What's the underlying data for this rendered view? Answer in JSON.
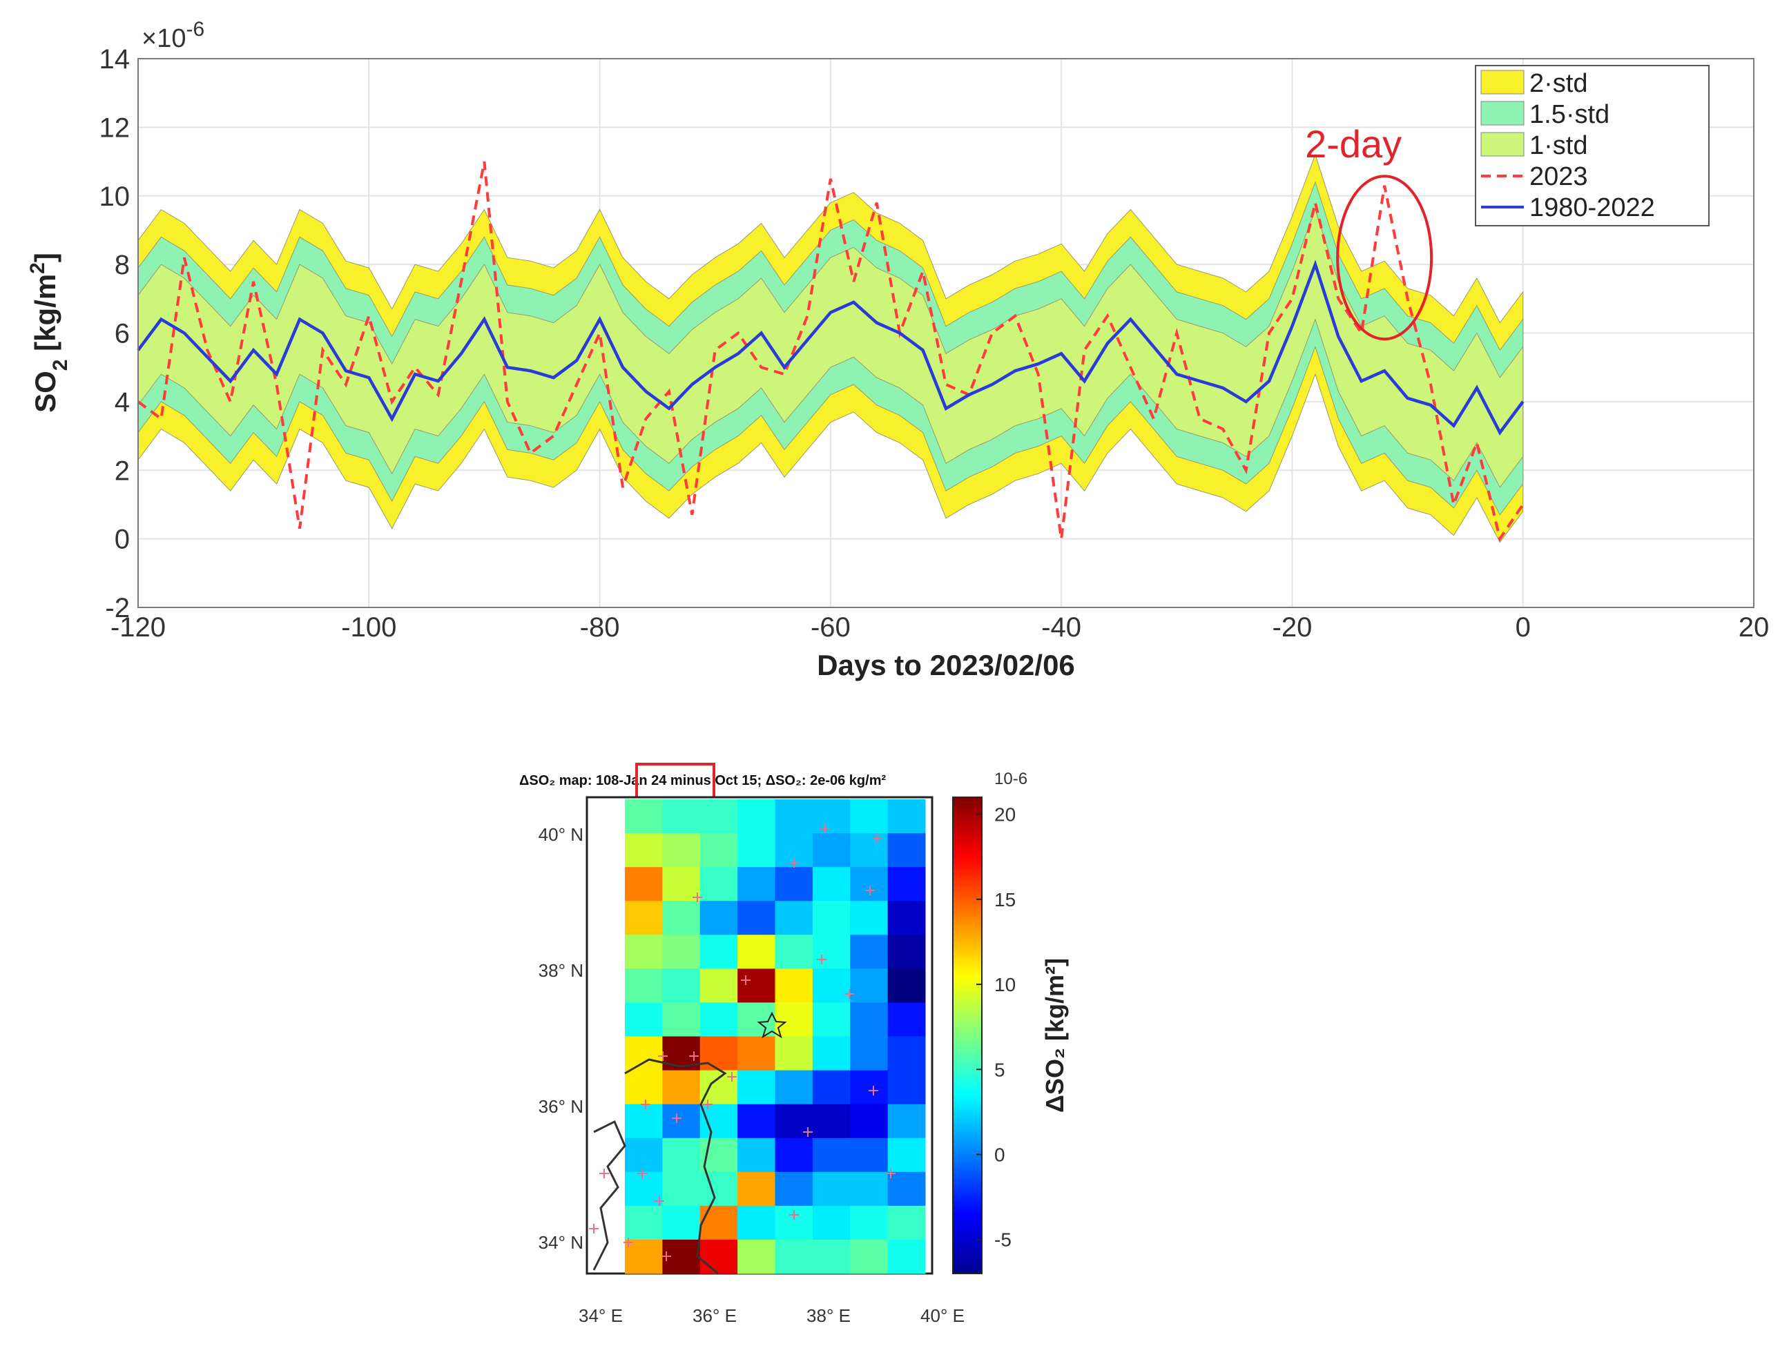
{
  "chart_data": [
    {
      "type": "area",
      "title": "",
      "xlabel": "Days to 2023/02/06",
      "ylabel": "SO",
      "ylabel_sub": "2",
      "ylabel_unit": " [kg/m",
      "ylabel_sup": "2",
      "ylabel_close": "]",
      "exponent_prefix": "×10",
      "exponent_power": "-6",
      "xlim": [
        -120,
        20
      ],
      "ylim": [
        -2,
        14
      ],
      "x_ticks": [
        -120,
        -100,
        -80,
        -60,
        -40,
        -20,
        0,
        20
      ],
      "y_ticks": [
        -2,
        0,
        2,
        4,
        6,
        8,
        10,
        12,
        14
      ],
      "grid": true,
      "legend_position": "top-right",
      "legend": [
        {
          "label": "2·std",
          "kind": "patch",
          "color": "#f7f02a"
        },
        {
          "label": "1.5·std",
          "kind": "patch",
          "color": "#8ef2b2"
        },
        {
          "label": "1·std",
          "kind": "patch",
          "color": "#cdf57a"
        },
        {
          "label": "2023",
          "kind": "dash",
          "color": "#ff3b3b"
        },
        {
          "label": "1980-2022",
          "kind": "line",
          "color": "#2a3bd8"
        }
      ],
      "annotation": {
        "label": "2-day",
        "color": "#e0242c",
        "center_day": -12,
        "center_value": 8.2
      },
      "x": [
        -120,
        -118,
        -116,
        -114,
        -112,
        -110,
        -108,
        -106,
        -104,
        -102,
        -100,
        -98,
        -96,
        -94,
        -92,
        -90,
        -88,
        -86,
        -84,
        -82,
        -80,
        -78,
        -76,
        -74,
        -72,
        -70,
        -68,
        -66,
        -64,
        -62,
        -60,
        -58,
        -56,
        -54,
        -52,
        -50,
        -48,
        -46,
        -44,
        -42,
        -40,
        -38,
        -36,
        -34,
        -32,
        -30,
        -28,
        -26,
        -24,
        -22,
        -20,
        -18,
        -16,
        -14,
        -12,
        -10,
        -8,
        -6,
        -4,
        -2,
        0
      ],
      "series": [
        {
          "name": "1980-2022",
          "values": [
            5.5,
            6.4,
            6.0,
            5.3,
            4.6,
            5.5,
            4.8,
            6.4,
            6.0,
            4.9,
            4.7,
            3.5,
            4.8,
            4.6,
            5.4,
            6.4,
            5.0,
            4.9,
            4.7,
            5.2,
            6.4,
            5.0,
            4.3,
            3.8,
            4.5,
            5.0,
            5.4,
            6.0,
            5.0,
            5.8,
            6.6,
            6.9,
            6.3,
            6.0,
            5.5,
            3.8,
            4.2,
            4.5,
            4.9,
            5.1,
            5.4,
            4.6,
            5.7,
            6.4,
            5.6,
            4.8,
            4.6,
            4.4,
            4.0,
            4.6,
            6.2,
            8.0,
            5.9,
            4.6,
            4.9,
            4.1,
            3.9,
            3.3,
            4.4,
            3.1,
            4.0
          ]
        },
        {
          "name": "2023",
          "values": [
            4.0,
            3.5,
            8.2,
            5.5,
            4.0,
            7.5,
            4.5,
            0.3,
            5.5,
            4.5,
            6.5,
            4.0,
            5.0,
            4.2,
            7.5,
            11.0,
            4.0,
            2.5,
            3.0,
            4.5,
            6.0,
            1.5,
            3.5,
            4.3,
            0.7,
            5.5,
            6.0,
            5.0,
            4.8,
            6.5,
            10.5,
            7.5,
            9.8,
            6.0,
            7.8,
            4.5,
            4.2,
            6.0,
            6.5,
            4.8,
            0.0,
            5.5,
            6.5,
            5.0,
            3.5,
            6.0,
            3.5,
            3.2,
            2.0,
            6.0,
            7.0,
            9.8,
            7.0,
            6.0,
            10.3,
            7.0,
            4.5,
            1.0,
            2.8,
            0.0,
            1.0
          ]
        },
        {
          "name": "1·std",
          "values": [
            1.6,
            1.6,
            1.6,
            1.6,
            1.6,
            1.6,
            1.6,
            1.6,
            1.6,
            1.6,
            1.6,
            1.6,
            1.6,
            1.6,
            1.6,
            1.6,
            1.6,
            1.6,
            1.6,
            1.6,
            1.6,
            1.6,
            1.6,
            1.6,
            1.6,
            1.6,
            1.6,
            1.6,
            1.6,
            1.6,
            1.6,
            1.6,
            1.6,
            1.6,
            1.6,
            1.6,
            1.6,
            1.6,
            1.6,
            1.6,
            1.6,
            1.6,
            1.6,
            1.6,
            1.6,
            1.6,
            1.6,
            1.6,
            1.6,
            1.6,
            1.6,
            1.6,
            1.6,
            1.6,
            1.6,
            1.6,
            1.6,
            1.6,
            1.6,
            1.6,
            1.6
          ]
        }
      ],
      "band_sd_multipliers": [
        1,
        1.5,
        2
      ]
    },
    {
      "type": "heatmap",
      "title_text": "ΔSO₂ map: 108-Jan 24 minus Oct 15; ΔSO₂: 2e-06 kg/m²",
      "highlight_text": "108-Jan 24",
      "colorbar_exponent": "10-6",
      "colorbar_label": "ΔSO₂ [kg/m²]",
      "colorbar_ticks": [
        -5,
        0,
        5,
        10,
        15,
        20
      ],
      "colorbar_range": [
        -7,
        21
      ],
      "x_tick_labels": [
        "34° E",
        "36° E",
        "38° E",
        "40° E"
      ],
      "y_tick_labels": [
        "40° N",
        "38° N",
        "36° N",
        "34° N"
      ],
      "lon_range": [
        34,
        40
      ],
      "lat_range": [
        33.5,
        40.5
      ],
      "grid_cols": 9,
      "grid_rows": 14,
      "values": [
        [
          null,
          6,
          5,
          5,
          4,
          2,
          2,
          3,
          2
        ],
        [
          null,
          9,
          8,
          6,
          4,
          2,
          1,
          2,
          -1
        ],
        [
          null,
          14,
          9,
          5,
          1,
          -1,
          3,
          1,
          -3
        ],
        [
          null,
          12,
          6,
          1,
          -1,
          2,
          4,
          3,
          -5
        ],
        [
          null,
          8,
          7,
          4,
          10,
          5,
          4,
          0,
          -6
        ],
        [
          null,
          6,
          5,
          9,
          20,
          11,
          3,
          1,
          -7
        ],
        [
          null,
          4,
          6,
          4,
          6,
          10,
          4,
          0,
          -3
        ],
        [
          null,
          11,
          21,
          15,
          14,
          9,
          3,
          0,
          -2
        ],
        [
          null,
          11,
          13,
          9,
          3,
          1,
          -2,
          -3,
          -2
        ],
        [
          null,
          3,
          0,
          3,
          -3,
          -5,
          -5,
          -4,
          1
        ],
        [
          null,
          2,
          5,
          6,
          2,
          -3,
          -1,
          -1,
          3
        ],
        [
          null,
          3,
          5,
          5,
          13,
          0,
          2,
          2,
          0
        ],
        [
          null,
          5,
          4,
          14,
          3,
          4,
          3,
          4,
          5
        ],
        [
          null,
          13,
          22,
          18,
          8,
          5,
          5,
          6,
          4
        ]
      ]
    }
  ]
}
